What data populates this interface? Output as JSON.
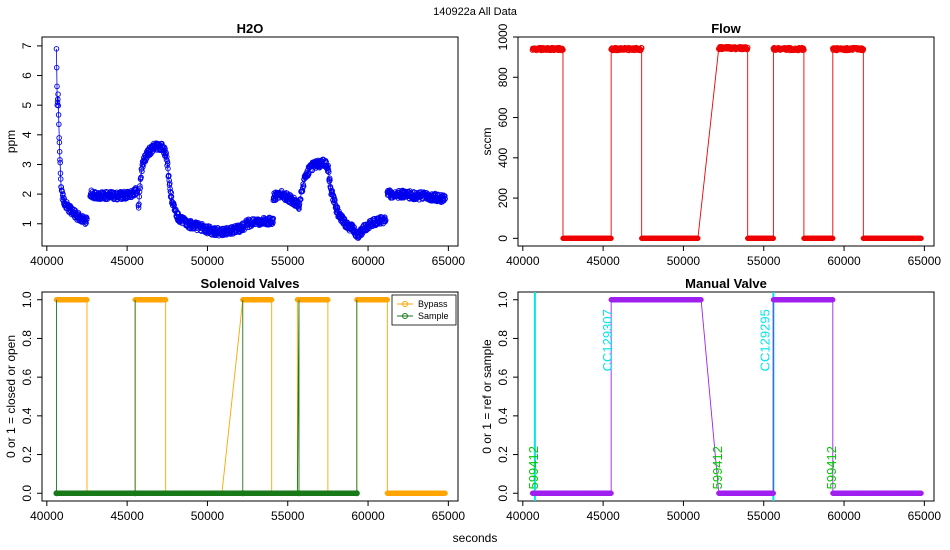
{
  "figure": {
    "suptitle": "140922a   All Data",
    "xlabel": "seconds"
  },
  "colors": {
    "h2o": "#0000ee",
    "flow": "#ee0000",
    "bypass": "#ffa500",
    "sample": "#1a7a1a",
    "manual": "#a020f0",
    "cc_line": "#00e5ee",
    "code_text": "#00cc00"
  },
  "chart_data": [
    {
      "id": "h2o",
      "type": "scatter",
      "title": "H2O",
      "xlabel": "",
      "ylabel": "ppm",
      "xlim": [
        39700,
        65600
      ],
      "ylim": [
        0.25,
        7.3
      ],
      "xticks": [
        40000,
        45000,
        50000,
        55000,
        60000,
        65000
      ],
      "yticks": [
        1,
        2,
        3,
        4,
        5,
        6,
        7
      ],
      "series": [
        {
          "name": "H2O",
          "segments": [
            [
              [
                40600,
                6.9
              ],
              [
                40650,
                5.0
              ],
              [
                40700,
                5.3
              ],
              [
                40800,
                3.4
              ],
              [
                40900,
                2.1
              ],
              [
                41100,
                1.7
              ],
              [
                41400,
                1.5
              ],
              [
                41800,
                1.3
              ],
              [
                42200,
                1.15
              ],
              [
                42500,
                1.1
              ]
            ],
            [
              [
                42700,
                2.0
              ],
              [
                43500,
                1.95
              ],
              [
                44500,
                1.95
              ],
              [
                45300,
                2.0
              ],
              [
                45600,
                2.1
              ]
            ],
            [
              [
                45700,
                1.5
              ],
              [
                45850,
                2.6
              ],
              [
                46000,
                3.1
              ],
              [
                46300,
                3.4
              ],
              [
                46700,
                3.6
              ],
              [
                47200,
                3.6
              ],
              [
                47450,
                3.3
              ],
              [
                47600,
                2.5
              ],
              [
                47800,
                1.7
              ],
              [
                48200,
                1.2
              ],
              [
                48700,
                1.0
              ],
              [
                49500,
                0.9
              ],
              [
                50300,
                0.75
              ],
              [
                51000,
                0.7
              ]
            ],
            [
              [
                51000,
                0.7
              ],
              [
                52300,
                0.9
              ]
            ],
            [
              [
                52400,
                1.0
              ],
              [
                53000,
                1.05
              ],
              [
                53600,
                1.1
              ],
              [
                54100,
                1.1
              ]
            ],
            [
              [
                54100,
                1.9
              ],
              [
                54600,
                2.0
              ],
              [
                55300,
                1.8
              ],
              [
                55700,
                1.6
              ]
            ],
            [
              [
                55700,
                1.6
              ],
              [
                55900,
                2.2
              ],
              [
                56100,
                2.6
              ],
              [
                56400,
                2.9
              ],
              [
                56800,
                3.0
              ],
              [
                57300,
                3.05
              ],
              [
                57500,
                2.9
              ],
              [
                57700,
                2.1
              ],
              [
                58100,
                1.4
              ],
              [
                58600,
                1.0
              ],
              [
                59100,
                0.8
              ],
              [
                59400,
                0.6
              ]
            ],
            [
              [
                59400,
                0.6
              ],
              [
                59700,
                0.8
              ],
              [
                60100,
                1.0
              ],
              [
                60600,
                1.1
              ],
              [
                61100,
                1.15
              ]
            ],
            [
              [
                61200,
                2.0
              ],
              [
                62000,
                2.0
              ],
              [
                63000,
                1.95
              ],
              [
                64000,
                1.9
              ],
              [
                64800,
                1.85
              ]
            ]
          ]
        }
      ]
    },
    {
      "id": "flow",
      "type": "line",
      "title": "Flow",
      "xlabel": "",
      "ylabel": "sccm",
      "xlim": [
        39700,
        65600
      ],
      "ylim": [
        -38,
        1000
      ],
      "xticks": [
        40000,
        45000,
        50000,
        55000,
        60000,
        65000
      ],
      "yticks": [
        0,
        200,
        400,
        600,
        800,
        1000
      ],
      "series": [
        {
          "name": "Flow",
          "points": [
            [
              40600,
              940
            ],
            [
              42500,
              940
            ],
            [
              42500,
              0
            ],
            [
              45500,
              0
            ],
            [
              45500,
              940
            ],
            [
              47400,
              940
            ],
            [
              47400,
              0
            ],
            [
              50900,
              0
            ],
            [
              52200,
              945
            ],
            [
              54000,
              945
            ],
            [
              54000,
              0
            ],
            [
              55600,
              0
            ],
            [
              55600,
              940
            ],
            [
              57500,
              940
            ],
            [
              57500,
              0
            ],
            [
              59300,
              0
            ],
            [
              59300,
              940
            ],
            [
              61200,
              940
            ],
            [
              61200,
              0
            ],
            [
              64800,
              0
            ]
          ]
        }
      ]
    },
    {
      "id": "solenoid",
      "type": "line",
      "title": "Solenoid Valves",
      "xlabel": "",
      "ylabel": "0 or 1 = closed or open",
      "xlim": [
        39700,
        65600
      ],
      "ylim": [
        -0.04,
        1.04
      ],
      "xticks": [
        40000,
        45000,
        50000,
        55000,
        60000,
        65000
      ],
      "yticks": [
        0.0,
        0.2,
        0.4,
        0.6,
        0.8,
        1.0
      ],
      "legend": {
        "position": "top-right",
        "entries": [
          "Bypass",
          "Sample"
        ]
      },
      "series": [
        {
          "name": "Bypass",
          "points": [
            [
              40600,
              1
            ],
            [
              42500,
              1
            ],
            [
              42500,
              0
            ],
            [
              45500,
              0
            ],
            [
              45500,
              1
            ],
            [
              47400,
              1
            ],
            [
              47400,
              0
            ],
            [
              50900,
              0
            ],
            [
              52200,
              1
            ],
            [
              54000,
              1
            ],
            [
              54000,
              0
            ],
            [
              55600,
              0
            ],
            [
              55600,
              1
            ],
            [
              57500,
              1
            ],
            [
              57500,
              0
            ],
            [
              59300,
              0
            ],
            [
              59300,
              1
            ],
            [
              61200,
              1
            ],
            [
              61200,
              0
            ],
            [
              64800,
              0
            ]
          ]
        },
        {
          "name": "Sample",
          "points": [
            [
              40600,
              1
            ],
            [
              40600,
              0
            ],
            [
              42500,
              0
            ],
            [
              45500,
              0
            ],
            [
              45500,
              1
            ],
            [
              45500,
              0
            ],
            [
              52200,
              0
            ],
            [
              52200,
              1
            ],
            [
              52200,
              0
            ],
            [
              55600,
              0
            ],
            [
              55700,
              1
            ],
            [
              55700,
              0
            ],
            [
              59300,
              0
            ],
            [
              59300,
              1
            ],
            [
              59300,
              0
            ]
          ]
        }
      ]
    },
    {
      "id": "manual",
      "type": "line",
      "title": "Manual Valve",
      "xlabel": "",
      "ylabel": "0 or 1 = ref or sample",
      "xlim": [
        39700,
        65600
      ],
      "ylim": [
        -0.04,
        1.04
      ],
      "xticks": [
        40000,
        45000,
        50000,
        55000,
        60000,
        65000
      ],
      "yticks": [
        0.0,
        0.2,
        0.4,
        0.6,
        0.8,
        1.0
      ],
      "series": [
        {
          "name": "Manual",
          "points": [
            [
              40600,
              0
            ],
            [
              45500,
              0
            ],
            [
              45500,
              1
            ],
            [
              51100,
              1
            ],
            [
              52200,
              0
            ],
            [
              55600,
              0
            ],
            [
              55600,
              1
            ],
            [
              59300,
              1
            ],
            [
              59300,
              0
            ],
            [
              64800,
              0
            ]
          ]
        }
      ],
      "vlines": [
        40750,
        55600
      ],
      "annotations": [
        {
          "text": "599412",
          "x": 40950,
          "y": 0.02,
          "kind": "code"
        },
        {
          "text": "CC129307",
          "x": 45550,
          "y": 0.63,
          "kind": "cc"
        },
        {
          "text": "599412",
          "x": 52400,
          "y": 0.02,
          "kind": "code"
        },
        {
          "text": "CC129295",
          "x": 55350,
          "y": 0.63,
          "kind": "cc"
        },
        {
          "text": "599412",
          "x": 59500,
          "y": 0.02,
          "kind": "code"
        }
      ]
    }
  ]
}
